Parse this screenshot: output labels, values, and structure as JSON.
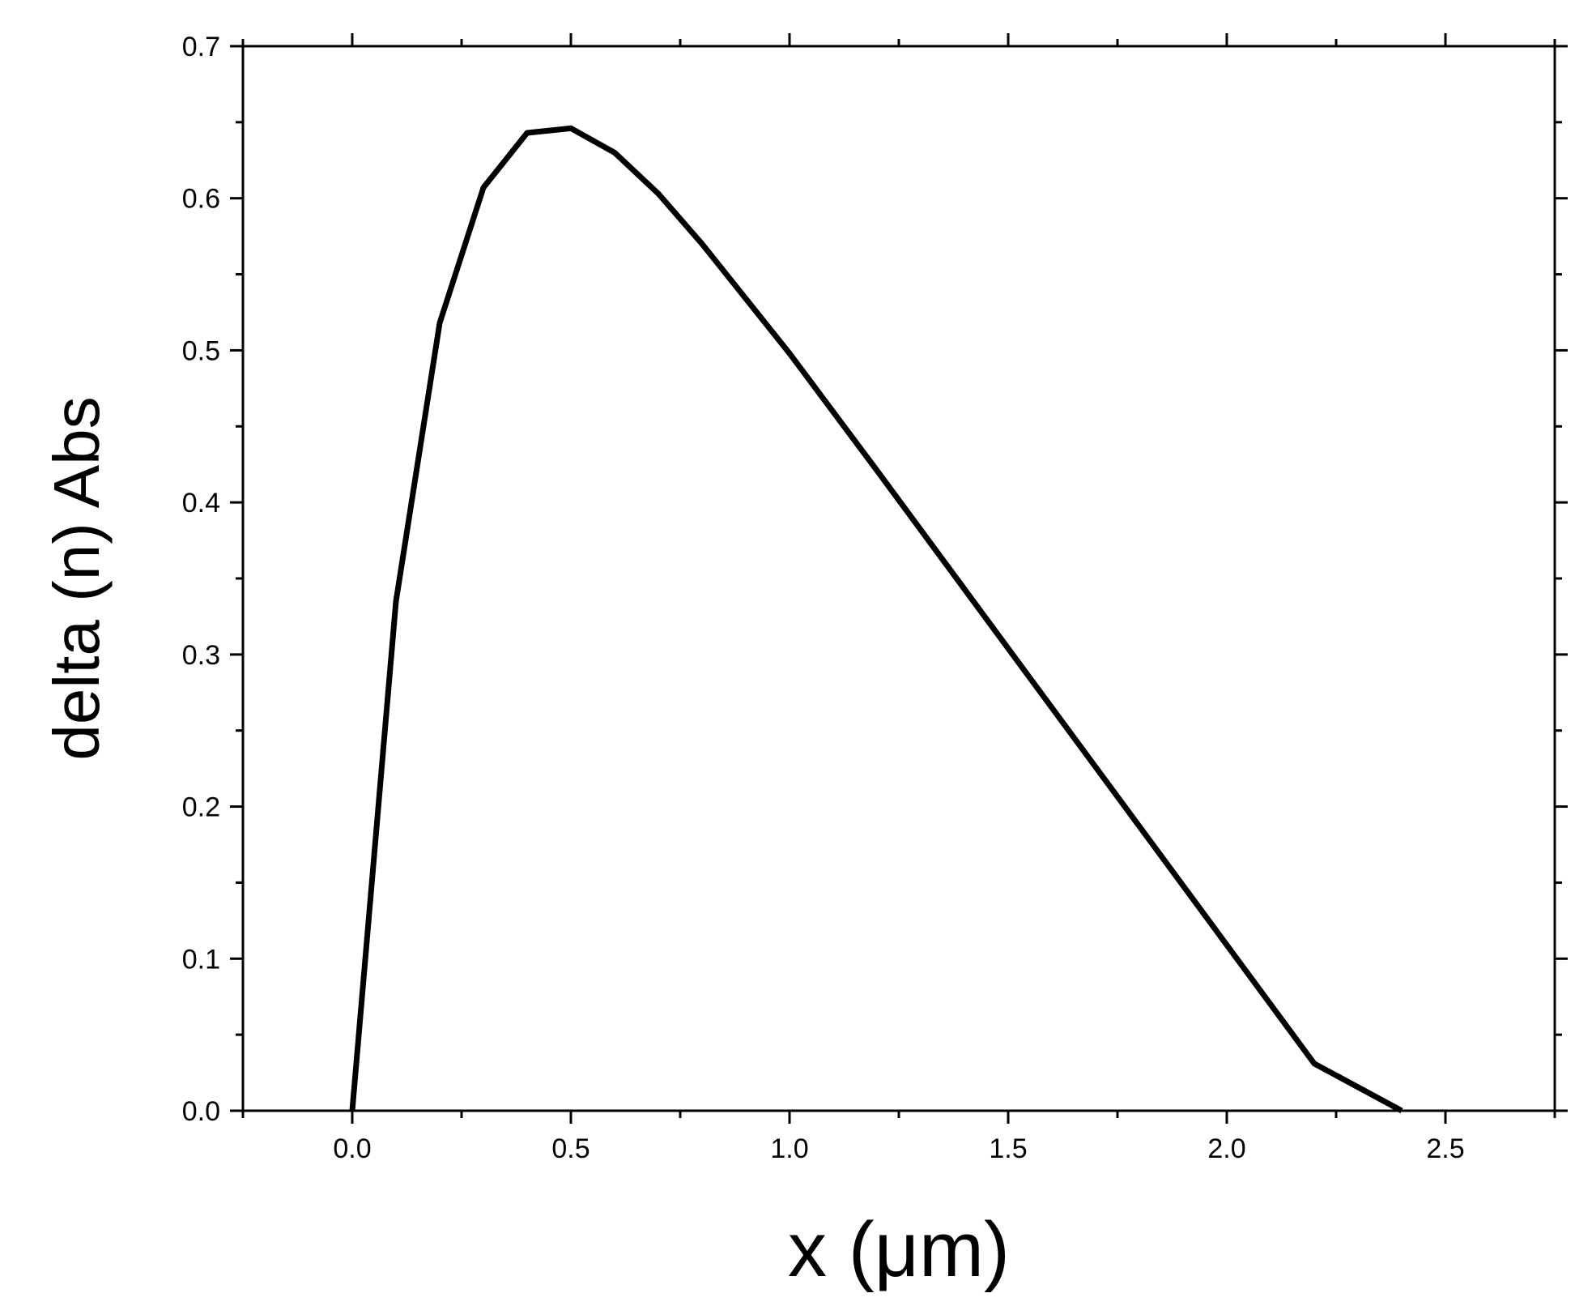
{
  "chart_data": {
    "type": "line",
    "xlabel": "x (μm)",
    "ylabel": "delta (n) Abs",
    "xlim": [
      -0.25,
      2.75
    ],
    "ylim": [
      0.0,
      0.7
    ],
    "x_ticks": [
      "0.0",
      "0.5",
      "1.0",
      "1.5",
      "2.0",
      "2.5"
    ],
    "y_ticks": [
      "0.0",
      "0.1",
      "0.2",
      "0.3",
      "0.4",
      "0.5",
      "0.6",
      "0.7"
    ],
    "grid": false,
    "series": [
      {
        "color": "#000000",
        "x": [
          0.0,
          0.1,
          0.2,
          0.3,
          0.4,
          0.5,
          0.6,
          0.7,
          0.8,
          1.0,
          1.2,
          1.4,
          1.6,
          1.8,
          2.0,
          2.2,
          2.4
        ],
        "y": [
          0.0,
          0.335,
          0.518,
          0.607,
          0.643,
          0.646,
          0.63,
          0.603,
          0.57,
          0.498,
          0.421,
          0.343,
          0.265,
          0.187,
          0.109,
          0.031,
          0.0
        ]
      }
    ]
  }
}
